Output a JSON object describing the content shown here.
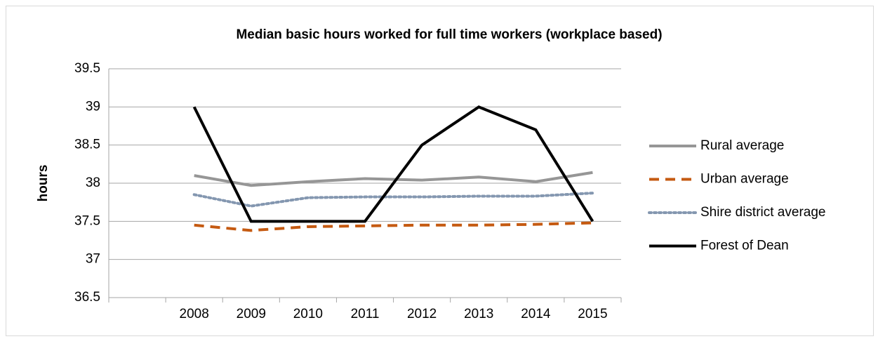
{
  "chart_data": {
    "type": "line",
    "title": "Median basic hours worked for full time workers (workplace based)",
    "y_label": "hours",
    "categories": [
      null,
      "2008",
      "2009",
      "2010",
      "2011",
      "2012",
      "2013",
      "2014",
      "2015"
    ],
    "ylim": [
      36.5,
      39.5
    ],
    "yticks": [
      36.5,
      37,
      37.5,
      38,
      38.5,
      39,
      39.5
    ],
    "grid": true,
    "legend": "right",
    "series": [
      {
        "name": "Rural average",
        "color": "#969696",
        "dash": "solid",
        "values": [
          null,
          38.1,
          37.97,
          38.02,
          38.06,
          38.04,
          38.08,
          38.02,
          38.14
        ]
      },
      {
        "name": "Urban average",
        "color": "#c55a11",
        "dash": "dash",
        "values": [
          null,
          37.45,
          37.38,
          37.43,
          37.44,
          37.45,
          37.45,
          37.46,
          37.48
        ]
      },
      {
        "name": "Shire district average",
        "color": "#8497b0",
        "dash": "dot",
        "values": [
          null,
          37.85,
          37.7,
          37.81,
          37.82,
          37.82,
          37.83,
          37.83,
          37.87
        ]
      },
      {
        "name": "Forest of Dean",
        "color": "#000000",
        "dash": "solid",
        "values": [
          null,
          39,
          37.5,
          37.5,
          37.5,
          38.5,
          39,
          38.7,
          37.5
        ]
      }
    ]
  }
}
